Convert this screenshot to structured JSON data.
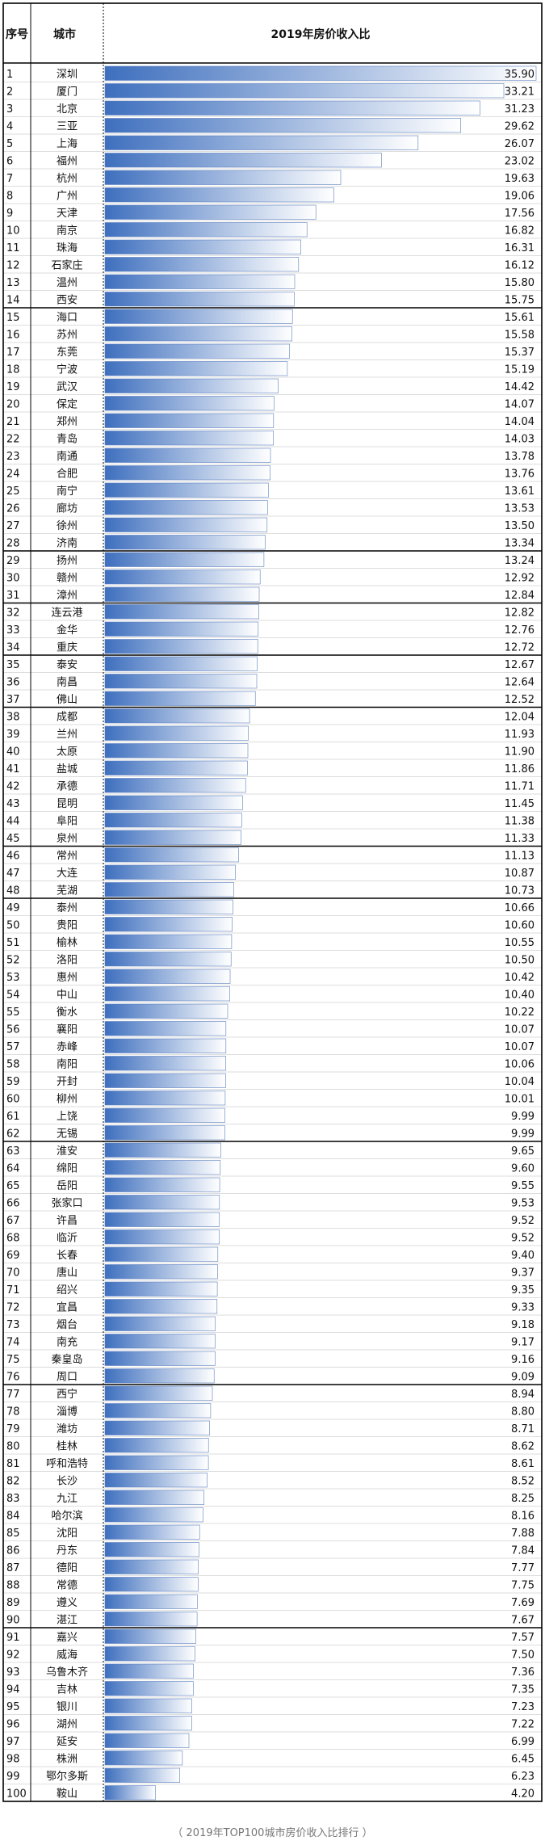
{
  "header": {
    "rank": "序号",
    "city": "城市",
    "ratio": "2019年房价收入比"
  },
  "caption": "（ 2019年TOP100城市房价收入比排行 ）",
  "colors": {
    "bar_dark": "#3e6fbe",
    "bar_light": "#ffffff",
    "grid": "#000000",
    "line_light": "#bbbbbb"
  },
  "chart_data": {
    "type": "bar",
    "title": "2019年房价收入比",
    "xlim": [
      0,
      35.9
    ],
    "rows": [
      {
        "rank": "1",
        "city": "深圳",
        "value": 35.9
      },
      {
        "rank": "2",
        "city": "厦门",
        "value": 33.21
      },
      {
        "rank": "3",
        "city": "北京",
        "value": 31.23
      },
      {
        "rank": "4",
        "city": "三亚",
        "value": 29.62
      },
      {
        "rank": "5",
        "city": "上海",
        "value": 26.07
      },
      {
        "rank": "6",
        "city": "福州",
        "value": 23.02
      },
      {
        "rank": "7",
        "city": "杭州",
        "value": 19.63
      },
      {
        "rank": "8",
        "city": "广州",
        "value": 19.06
      },
      {
        "rank": "9",
        "city": "天津",
        "value": 17.56
      },
      {
        "rank": "10",
        "city": "南京",
        "value": 16.82
      },
      {
        "rank": "11",
        "city": "珠海",
        "value": 16.31
      },
      {
        "rank": "12",
        "city": "石家庄",
        "value": 16.12
      },
      {
        "rank": "13",
        "city": "温州",
        "value": 15.8
      },
      {
        "rank": "14",
        "city": "西安",
        "value": 15.75
      },
      {
        "rank": "15",
        "city": "海口",
        "value": 15.61
      },
      {
        "rank": "16",
        "city": "苏州",
        "value": 15.58
      },
      {
        "rank": "17",
        "city": "东莞",
        "value": 15.37
      },
      {
        "rank": "18",
        "city": "宁波",
        "value": 15.19
      },
      {
        "rank": "19",
        "city": "武汉",
        "value": 14.42
      },
      {
        "rank": "20",
        "city": "保定",
        "value": 14.07
      },
      {
        "rank": "21",
        "city": "郑州",
        "value": 14.04
      },
      {
        "rank": "22",
        "city": "青岛",
        "value": 14.03
      },
      {
        "rank": "23",
        "city": "南通",
        "value": 13.78
      },
      {
        "rank": "24",
        "city": "合肥",
        "value": 13.76
      },
      {
        "rank": "25",
        "city": "南宁",
        "value": 13.61
      },
      {
        "rank": "26",
        "city": "廊坊",
        "value": 13.53
      },
      {
        "rank": "27",
        "city": "徐州",
        "value": 13.5
      },
      {
        "rank": "28",
        "city": "济南",
        "value": 13.34
      },
      {
        "rank": "29",
        "city": "扬州",
        "value": 13.24
      },
      {
        "rank": "30",
        "city": "赣州",
        "value": 12.92
      },
      {
        "rank": "31",
        "city": "漳州",
        "value": 12.84
      },
      {
        "rank": "32",
        "city": "连云港",
        "value": 12.82
      },
      {
        "rank": "33",
        "city": "金华",
        "value": 12.76
      },
      {
        "rank": "34",
        "city": "重庆",
        "value": 12.72
      },
      {
        "rank": "35",
        "city": "泰安",
        "value": 12.67
      },
      {
        "rank": "36",
        "city": "南昌",
        "value": 12.64
      },
      {
        "rank": "37",
        "city": "佛山",
        "value": 12.52
      },
      {
        "rank": "38",
        "city": "成都",
        "value": 12.04
      },
      {
        "rank": "39",
        "city": "兰州",
        "value": 11.93
      },
      {
        "rank": "40",
        "city": "太原",
        "value": 11.9
      },
      {
        "rank": "41",
        "city": "盐城",
        "value": 11.86
      },
      {
        "rank": "42",
        "city": "承德",
        "value": 11.71
      },
      {
        "rank": "43",
        "city": "昆明",
        "value": 11.45
      },
      {
        "rank": "44",
        "city": "阜阳",
        "value": 11.38
      },
      {
        "rank": "45",
        "city": "泉州",
        "value": 11.33
      },
      {
        "rank": "46",
        "city": "常州",
        "value": 11.13
      },
      {
        "rank": "47",
        "city": "大连",
        "value": 10.87
      },
      {
        "rank": "48",
        "city": "芜湖",
        "value": 10.73
      },
      {
        "rank": "49",
        "city": "泰州",
        "value": 10.66
      },
      {
        "rank": "50",
        "city": "贵阳",
        "value": 10.6
      },
      {
        "rank": "51",
        "city": "榆林",
        "value": 10.55
      },
      {
        "rank": "52",
        "city": "洛阳",
        "value": 10.5
      },
      {
        "rank": "53",
        "city": "惠州",
        "value": 10.42
      },
      {
        "rank": "54",
        "city": "中山",
        "value": 10.4
      },
      {
        "rank": "55",
        "city": "衡水",
        "value": 10.22
      },
      {
        "rank": "56",
        "city": "襄阳",
        "value": 10.07
      },
      {
        "rank": "57",
        "city": "赤峰",
        "value": 10.07
      },
      {
        "rank": "58",
        "city": "南阳",
        "value": 10.06
      },
      {
        "rank": "59",
        "city": "开封",
        "value": 10.04
      },
      {
        "rank": "60",
        "city": "柳州",
        "value": 10.01
      },
      {
        "rank": "61",
        "city": "上饶",
        "value": 9.99
      },
      {
        "rank": "62",
        "city": "无锡",
        "value": 9.99
      },
      {
        "rank": "63",
        "city": "淮安",
        "value": 9.65
      },
      {
        "rank": "64",
        "city": "绵阳",
        "value": 9.6
      },
      {
        "rank": "65",
        "city": "岳阳",
        "value": 9.55
      },
      {
        "rank": "66",
        "city": "张家口",
        "value": 9.53
      },
      {
        "rank": "67",
        "city": "许昌",
        "value": 9.52
      },
      {
        "rank": "68",
        "city": "临沂",
        "value": 9.52
      },
      {
        "rank": "69",
        "city": "长春",
        "value": 9.4
      },
      {
        "rank": "70",
        "city": "唐山",
        "value": 9.37
      },
      {
        "rank": "71",
        "city": "绍兴",
        "value": 9.35
      },
      {
        "rank": "72",
        "city": "宜昌",
        "value": 9.33
      },
      {
        "rank": "73",
        "city": "烟台",
        "value": 9.18
      },
      {
        "rank": "74",
        "city": "南充",
        "value": 9.17
      },
      {
        "rank": "75",
        "city": "秦皇岛",
        "value": 9.16
      },
      {
        "rank": "76",
        "city": "周口",
        "value": 9.09
      },
      {
        "rank": "77",
        "city": "西宁",
        "value": 8.94
      },
      {
        "rank": "78",
        "city": "淄博",
        "value": 8.8
      },
      {
        "rank": "79",
        "city": "潍坊",
        "value": 8.71
      },
      {
        "rank": "80",
        "city": "桂林",
        "value": 8.62
      },
      {
        "rank": "81",
        "city": "呼和浩特",
        "value": 8.61
      },
      {
        "rank": "82",
        "city": "长沙",
        "value": 8.52
      },
      {
        "rank": "83",
        "city": "九江",
        "value": 8.25
      },
      {
        "rank": "84",
        "city": "哈尔滨",
        "value": 8.16
      },
      {
        "rank": "85",
        "city": "沈阳",
        "value": 7.88
      },
      {
        "rank": "86",
        "city": "丹东",
        "value": 7.84
      },
      {
        "rank": "87",
        "city": "德阳",
        "value": 7.77
      },
      {
        "rank": "88",
        "city": "常德",
        "value": 7.75
      },
      {
        "rank": "89",
        "city": "遵义",
        "value": 7.69
      },
      {
        "rank": "90",
        "city": "湛江",
        "value": 7.67
      },
      {
        "rank": "91",
        "city": "嘉兴",
        "value": 7.57
      },
      {
        "rank": "92",
        "city": "威海",
        "value": 7.5
      },
      {
        "rank": "93",
        "city": "乌鲁木齐",
        "value": 7.36
      },
      {
        "rank": "94",
        "city": "吉林",
        "value": 7.35
      },
      {
        "rank": "95",
        "city": "银川",
        "value": 7.23
      },
      {
        "rank": "96",
        "city": "湖州",
        "value": 7.22
      },
      {
        "rank": "97",
        "city": "延安",
        "value": 6.99
      },
      {
        "rank": "98",
        "city": "株洲",
        "value": 6.45
      },
      {
        "rank": "99",
        "city": "鄂尔多斯",
        "value": 6.23
      },
      {
        "rank": "100",
        "city": "鞍山",
        "value": 4.2
      }
    ],
    "group_breaks_after_rank": [
      14,
      28,
      31,
      34,
      37,
      45,
      48,
      62,
      76,
      90
    ]
  }
}
